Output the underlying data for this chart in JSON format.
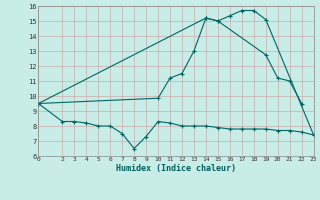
{
  "bg_color": "#c8ece6",
  "grid_color": "#b0b0b0",
  "line_color": "#006666",
  "xlabel": "Humidex (Indice chaleur)",
  "xlim": [
    0,
    23
  ],
  "ylim": [
    6,
    16
  ],
  "yticks": [
    6,
    7,
    8,
    9,
    10,
    11,
    12,
    13,
    14,
    15,
    16
  ],
  "xticks": [
    0,
    2,
    3,
    4,
    5,
    6,
    7,
    8,
    9,
    10,
    11,
    12,
    13,
    14,
    15,
    16,
    17,
    18,
    19,
    20,
    21,
    22,
    23
  ],
  "line1_x": [
    0,
    14,
    15,
    16,
    17,
    18,
    19,
    23
  ],
  "line1_y": [
    9.5,
    15.2,
    15.0,
    15.35,
    15.7,
    15.7,
    15.1,
    7.4
  ],
  "line2_x": [
    0,
    10,
    11,
    12,
    13,
    14,
    15,
    19,
    20,
    21,
    22
  ],
  "line2_y": [
    9.5,
    9.85,
    11.2,
    11.5,
    13.0,
    15.2,
    15.0,
    12.75,
    11.2,
    11.0,
    9.5
  ],
  "line3_x": [
    0,
    2,
    3,
    4,
    5,
    6,
    7,
    8,
    9,
    10,
    11,
    12,
    13,
    14,
    15,
    16,
    17,
    18,
    19,
    20,
    21,
    22,
    23
  ],
  "line3_y": [
    9.5,
    8.3,
    8.3,
    8.2,
    8.0,
    8.0,
    7.5,
    6.5,
    7.3,
    8.3,
    8.2,
    8.0,
    8.0,
    8.0,
    7.9,
    7.8,
    7.8,
    7.8,
    7.8,
    7.7,
    7.7,
    7.6,
    7.4
  ]
}
